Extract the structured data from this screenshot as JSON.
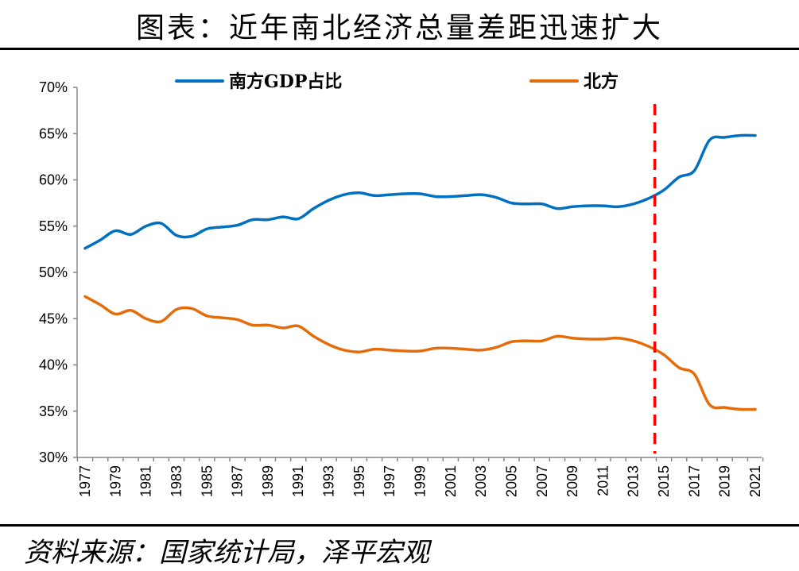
{
  "title": "图表：近年南北经济总量差距迅速扩大",
  "source": "资料来源：国家统计局，泽平宏观",
  "chart_data": {
    "type": "line",
    "title": "图表：近年南北经济总量差距迅速扩大",
    "xlabel": "",
    "ylabel": "",
    "ylim": [
      30,
      70
    ],
    "yticks": [
      "30%",
      "35%",
      "40%",
      "45%",
      "50%",
      "55%",
      "60%",
      "65%",
      "70%"
    ],
    "xlim": [
      1977,
      2021
    ],
    "xticks": [
      "1977",
      "1979",
      "1981",
      "1983",
      "1985",
      "1987",
      "1989",
      "1991",
      "1993",
      "1995",
      "1997",
      "1999",
      "2001",
      "2003",
      "2005",
      "2007",
      "2009",
      "2011",
      "2013",
      "2015",
      "2017",
      "2019",
      "2021"
    ],
    "grid": false,
    "legend": "top",
    "x": [
      1977,
      1978,
      1979,
      1980,
      1981,
      1982,
      1983,
      1984,
      1985,
      1986,
      1987,
      1988,
      1989,
      1990,
      1991,
      1992,
      1993,
      1994,
      1995,
      1996,
      1997,
      1998,
      1999,
      2000,
      2001,
      2002,
      2003,
      2004,
      2005,
      2006,
      2007,
      2008,
      2009,
      2010,
      2011,
      2012,
      2013,
      2014,
      2015,
      2016,
      2017,
      2018,
      2019,
      2020,
      2021
    ],
    "series": [
      {
        "name": "南方GDP占比",
        "color": "#0070C0",
        "values": [
          52.6,
          53.5,
          54.5,
          54.1,
          55.0,
          55.3,
          54.0,
          53.9,
          54.7,
          54.9,
          55.1,
          55.7,
          55.7,
          56.0,
          55.8,
          56.9,
          57.8,
          58.4,
          58.6,
          58.3,
          58.4,
          58.5,
          58.5,
          58.2,
          58.2,
          58.3,
          58.4,
          58.1,
          57.5,
          57.4,
          57.4,
          56.9,
          57.1,
          57.2,
          57.2,
          57.1,
          57.4,
          58.0,
          58.9,
          60.3,
          61.0,
          64.3,
          64.6,
          64.8,
          64.8
        ]
      },
      {
        "name": "北方",
        "color": "#E46C0A",
        "values": [
          47.4,
          46.5,
          45.5,
          45.9,
          45.0,
          44.7,
          46.0,
          46.1,
          45.3,
          45.1,
          44.9,
          44.3,
          44.3,
          44.0,
          44.2,
          43.1,
          42.2,
          41.6,
          41.4,
          41.7,
          41.6,
          41.5,
          41.5,
          41.8,
          41.8,
          41.7,
          41.6,
          41.9,
          42.5,
          42.6,
          42.6,
          43.1,
          42.9,
          42.8,
          42.8,
          42.9,
          42.6,
          42.0,
          41.1,
          39.7,
          39.0,
          35.7,
          35.4,
          35.2,
          35.2
        ]
      }
    ],
    "annotations": [
      {
        "type": "vertical-dashed-line",
        "x": 2014.4,
        "color": "#FF0000"
      }
    ]
  }
}
